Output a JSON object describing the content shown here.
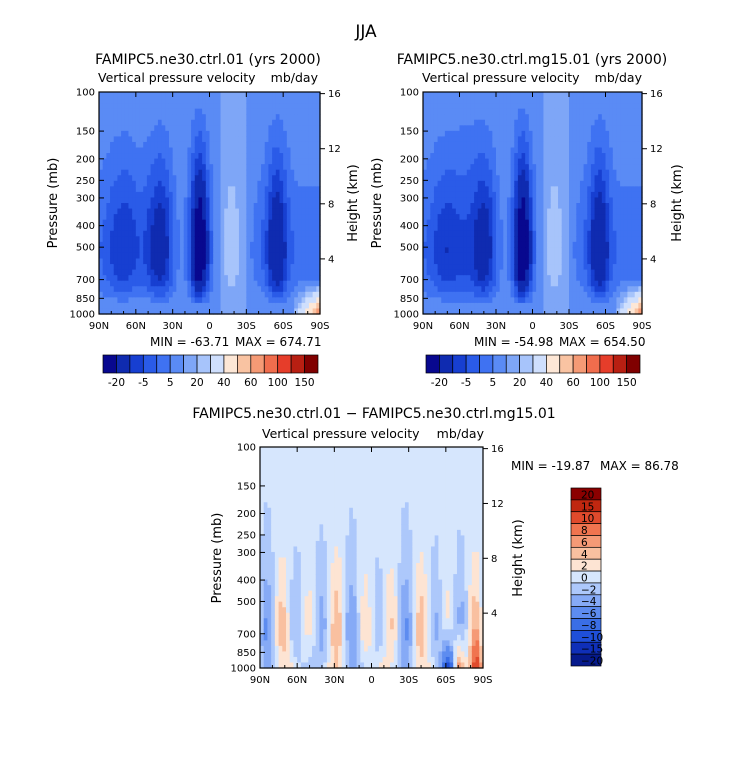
{
  "figure": {
    "title": "JJA"
  },
  "colors": {
    "full_field": [
      "#08088f",
      "#0f2bb0",
      "#173fd1",
      "#2a5be8",
      "#3f72f2",
      "#5a8bf5",
      "#7ea6f7",
      "#a7c4fb",
      "#cfdffd",
      "#fde7d6",
      "#f9c3a2",
      "#f59a75",
      "#f06d4d",
      "#e63d2a",
      "#b81f12",
      "#800000"
    ],
    "difference": [
      "#061a8c",
      "#0f2fb8",
      "#1f4fd9",
      "#3a6ee6",
      "#5d8cf0",
      "#86aaf6",
      "#adc8fb",
      "#d6e6fd",
      "#fde4d3",
      "#f9c0a0",
      "#f59a76",
      "#f0744f",
      "#e04a2c",
      "#c02710",
      "#8b0000"
    ],
    "plot_frame": "#000000",
    "background": "#ffffff"
  },
  "chart_data": [
    {
      "type": "heatmap",
      "title": "FAMIPC5.ne30.ctrl.01 (yrs 2000)",
      "subtitle_left": "Vertical pressure velocity",
      "subtitle_right": "mb/day",
      "xlabel": "",
      "ylabel": "Pressure (mb)",
      "ylabel_right": "Height (km)",
      "x_ticks": [
        "90N",
        "60N",
        "30N",
        "0",
        "30S",
        "60S",
        "90S"
      ],
      "x_range": [
        90,
        -90
      ],
      "y_ticks": [
        "100",
        "150",
        "200",
        "250",
        "300",
        "400",
        "500",
        "700",
        "850",
        "1000"
      ],
      "y_scale": "log",
      "y_range": [
        100,
        1000
      ],
      "y2_ticks": [
        "16",
        "12",
        "8",
        "4"
      ],
      "stats": {
        "min_label": "MIN = -63.71",
        "max_label": "MAX = 674.71",
        "min": -63.71,
        "max": 674.71
      },
      "colorbar_orientation": "horizontal",
      "colorbar_labels": [
        "-20",
        "-5",
        "5",
        "20",
        "40",
        "60",
        "100",
        "150"
      ],
      "colorbar_levels": [
        -30,
        -20,
        -15,
        -10,
        -5,
        0,
        5,
        10,
        20,
        30,
        40,
        50,
        60,
        80,
        100,
        150
      ]
    },
    {
      "type": "heatmap",
      "title": "FAMIPC5.ne30.ctrl.mg15.01 (yrs 2000)",
      "subtitle_left": "Vertical pressure velocity",
      "subtitle_right": "mb/day",
      "xlabel": "",
      "ylabel": "Pressure (mb)",
      "ylabel_right": "Height (km)",
      "x_ticks": [
        "90N",
        "60N",
        "30N",
        "0",
        "30S",
        "60S",
        "90S"
      ],
      "x_range": [
        90,
        -90
      ],
      "y_ticks": [
        "100",
        "150",
        "200",
        "250",
        "300",
        "400",
        "500",
        "700",
        "850",
        "1000"
      ],
      "y_scale": "log",
      "y_range": [
        100,
        1000
      ],
      "y2_ticks": [
        "16",
        "12",
        "8",
        "4"
      ],
      "stats": {
        "min_label": "MIN = -54.98",
        "max_label": "MAX = 654.50",
        "min": -54.98,
        "max": 654.5
      },
      "colorbar_orientation": "horizontal",
      "colorbar_labels": [
        "-20",
        "-5",
        "5",
        "20",
        "40",
        "60",
        "100",
        "150"
      ],
      "colorbar_levels": [
        -30,
        -20,
        -15,
        -10,
        -5,
        0,
        5,
        10,
        20,
        30,
        40,
        50,
        60,
        80,
        100,
        150
      ]
    },
    {
      "type": "heatmap",
      "title": "FAMIPC5.ne30.ctrl.01 − FAMIPC5.ne30.ctrl.mg15.01",
      "subtitle_left": "Vertical pressure velocity",
      "subtitle_right": "mb/day",
      "xlabel": "",
      "ylabel": "Pressure (mb)",
      "ylabel_right": "Height (km)",
      "x_ticks": [
        "90N",
        "60N",
        "30N",
        "0",
        "30S",
        "60S",
        "90S"
      ],
      "x_range": [
        90,
        -90
      ],
      "y_ticks": [
        "100",
        "150",
        "200",
        "250",
        "300",
        "400",
        "500",
        "700",
        "850",
        "1000"
      ],
      "y_scale": "log",
      "y_range": [
        100,
        1000
      ],
      "y2_ticks": [
        "16",
        "12",
        "8",
        "4"
      ],
      "stats": {
        "min_label": "MIN = -19.87",
        "max_label": "MAX =  86.78",
        "min": -19.87,
        "max": 86.78
      },
      "colorbar_orientation": "vertical",
      "colorbar_labels": [
        "20",
        "15",
        "10",
        "8",
        "6",
        "4",
        "2",
        "0",
        "−2",
        "−4",
        "−6",
        "−8",
        "−10",
        "−15",
        "−20"
      ],
      "colorbar_levels": [
        20,
        15,
        10,
        8,
        6,
        4,
        2,
        0,
        -2,
        -4,
        -6,
        -8,
        -10,
        -15,
        -20
      ]
    }
  ]
}
